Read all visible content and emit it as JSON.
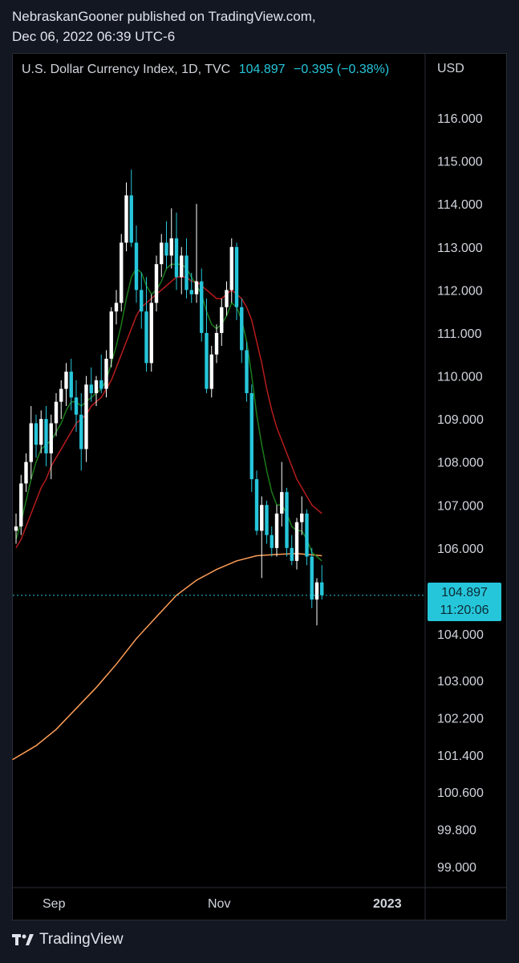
{
  "header": {
    "line1": "NebraskanGooner published on TradingView.com,",
    "line2": "Dec 06, 2022 06:39 UTC-6"
  },
  "legend": {
    "name": "U.S. Dollar Currency Index, 1D, TVC",
    "value": "104.897",
    "change": "−0.395 (−0.38%)"
  },
  "axis": {
    "currency": "USD",
    "x_labels": [
      "Sep",
      "Nov",
      "2023"
    ]
  },
  "last_price": {
    "value": "104.897",
    "countdown": "11:20:06"
  },
  "footer": {
    "brand": "TradingView"
  },
  "colors": {
    "up": "#ffffff",
    "down": "#26c6da",
    "ma_fast": "#1b7a1b",
    "ma_mid": "#b71c1c",
    "ma_slow": "#ff9e57",
    "accent": "#26c6da"
  },
  "chart_data": {
    "type": "candlestick",
    "y_ticks": [
      116.0,
      115.0,
      114.0,
      113.0,
      112.0,
      111.0,
      110.0,
      109.0,
      108.0,
      107.0,
      106.0,
      104.0,
      103.0,
      102.2,
      101.4,
      100.6,
      99.8,
      99.0
    ],
    "y_tick_labels": [
      "116.000",
      "115.000",
      "114.000",
      "113.000",
      "112.000",
      "111.000",
      "110.000",
      "109.000",
      "108.000",
      "107.000",
      "106.000",
      "104.000",
      "103.000",
      "102.200",
      "101.400",
      "100.600",
      "99.800",
      "99.000"
    ],
    "candles": [
      {
        "o": 106.4,
        "h": 106.8,
        "l": 106.1,
        "c": 106.5
      },
      {
        "o": 106.5,
        "h": 107.7,
        "l": 106.3,
        "c": 107.5
      },
      {
        "o": 107.5,
        "h": 108.2,
        "l": 107.3,
        "c": 108.0
      },
      {
        "o": 108.0,
        "h": 109.3,
        "l": 107.6,
        "c": 108.9
      },
      {
        "o": 108.9,
        "h": 109.1,
        "l": 108.1,
        "c": 108.4
      },
      {
        "o": 108.4,
        "h": 109.2,
        "l": 108.2,
        "c": 109.0
      },
      {
        "o": 109.0,
        "h": 109.3,
        "l": 107.9,
        "c": 108.2
      },
      {
        "o": 108.2,
        "h": 109.1,
        "l": 107.6,
        "c": 108.9
      },
      {
        "o": 108.9,
        "h": 109.6,
        "l": 108.6,
        "c": 109.4
      },
      {
        "o": 109.4,
        "h": 109.9,
        "l": 109.0,
        "c": 109.7
      },
      {
        "o": 109.7,
        "h": 110.3,
        "l": 109.3,
        "c": 110.1
      },
      {
        "o": 110.1,
        "h": 110.4,
        "l": 109.2,
        "c": 109.5
      },
      {
        "o": 109.5,
        "h": 109.9,
        "l": 108.7,
        "c": 109.1
      },
      {
        "o": 109.1,
        "h": 109.6,
        "l": 107.8,
        "c": 108.3
      },
      {
        "o": 108.3,
        "h": 110.0,
        "l": 108.0,
        "c": 109.8
      },
      {
        "o": 109.8,
        "h": 110.2,
        "l": 109.4,
        "c": 109.6
      },
      {
        "o": 109.6,
        "h": 110.0,
        "l": 109.3,
        "c": 109.9
      },
      {
        "o": 109.9,
        "h": 110.5,
        "l": 109.6,
        "c": 109.7
      },
      {
        "o": 109.7,
        "h": 110.6,
        "l": 109.5,
        "c": 110.4
      },
      {
        "o": 110.4,
        "h": 111.6,
        "l": 110.2,
        "c": 111.5
      },
      {
        "o": 111.5,
        "h": 112.0,
        "l": 111.2,
        "c": 111.7
      },
      {
        "o": 111.7,
        "h": 113.3,
        "l": 111.5,
        "c": 113.1
      },
      {
        "o": 113.1,
        "h": 114.5,
        "l": 112.9,
        "c": 114.2
      },
      {
        "o": 114.2,
        "h": 114.8,
        "l": 113.0,
        "c": 113.1
      },
      {
        "o": 113.1,
        "h": 113.5,
        "l": 111.7,
        "c": 112.0
      },
      {
        "o": 112.0,
        "h": 112.4,
        "l": 111.1,
        "c": 111.5
      },
      {
        "o": 111.5,
        "h": 112.3,
        "l": 110.1,
        "c": 110.3
      },
      {
        "o": 110.3,
        "h": 111.9,
        "l": 110.1,
        "c": 111.7
      },
      {
        "o": 111.7,
        "h": 112.8,
        "l": 111.5,
        "c": 112.6
      },
      {
        "o": 112.6,
        "h": 113.3,
        "l": 112.3,
        "c": 113.1
      },
      {
        "o": 113.1,
        "h": 113.6,
        "l": 112.5,
        "c": 112.8
      },
      {
        "o": 112.8,
        "h": 113.9,
        "l": 112.5,
        "c": 113.2
      },
      {
        "o": 113.2,
        "h": 113.8,
        "l": 112.0,
        "c": 112.3
      },
      {
        "o": 112.3,
        "h": 113.0,
        "l": 111.9,
        "c": 112.8
      },
      {
        "o": 112.8,
        "h": 113.2,
        "l": 111.8,
        "c": 112.0
      },
      {
        "o": 112.0,
        "h": 112.4,
        "l": 111.7,
        "c": 111.9
      },
      {
        "o": 111.9,
        "h": 114.0,
        "l": 111.7,
        "c": 112.2
      },
      {
        "o": 112.2,
        "h": 112.5,
        "l": 110.8,
        "c": 111.0
      },
      {
        "o": 111.0,
        "h": 111.8,
        "l": 109.6,
        "c": 109.7
      },
      {
        "o": 109.7,
        "h": 110.7,
        "l": 109.5,
        "c": 110.5
      },
      {
        "o": 110.5,
        "h": 111.2,
        "l": 110.3,
        "c": 111.0
      },
      {
        "o": 111.0,
        "h": 111.8,
        "l": 110.7,
        "c": 111.6
      },
      {
        "o": 111.6,
        "h": 112.2,
        "l": 111.4,
        "c": 112.0
      },
      {
        "o": 112.0,
        "h": 113.2,
        "l": 111.7,
        "c": 113.0
      },
      {
        "o": 113.0,
        "h": 113.1,
        "l": 111.3,
        "c": 111.6
      },
      {
        "o": 111.6,
        "h": 111.8,
        "l": 110.3,
        "c": 110.6
      },
      {
        "o": 110.6,
        "h": 110.8,
        "l": 109.4,
        "c": 109.6
      },
      {
        "o": 109.6,
        "h": 109.8,
        "l": 107.3,
        "c": 107.6
      },
      {
        "o": 107.6,
        "h": 107.8,
        "l": 106.3,
        "c": 106.4
      },
      {
        "o": 106.4,
        "h": 107.2,
        "l": 105.3,
        "c": 107.0
      },
      {
        "o": 107.0,
        "h": 107.1,
        "l": 106.1,
        "c": 106.3
      },
      {
        "o": 106.3,
        "h": 106.5,
        "l": 105.8,
        "c": 106.0
      },
      {
        "o": 106.0,
        "h": 107.0,
        "l": 105.8,
        "c": 106.8
      },
      {
        "o": 106.8,
        "h": 108.0,
        "l": 106.5,
        "c": 107.3
      },
      {
        "o": 107.3,
        "h": 107.4,
        "l": 105.8,
        "c": 106.0
      },
      {
        "o": 106.0,
        "h": 106.3,
        "l": 105.6,
        "c": 105.7
      },
      {
        "o": 105.7,
        "h": 106.7,
        "l": 105.5,
        "c": 106.6
      },
      {
        "o": 106.6,
        "h": 107.2,
        "l": 106.3,
        "c": 106.8
      },
      {
        "o": 106.8,
        "h": 106.9,
        "l": 105.6,
        "c": 105.8
      },
      {
        "o": 105.8,
        "h": 106.0,
        "l": 104.6,
        "c": 104.8
      },
      {
        "o": 104.8,
        "h": 105.3,
        "l": 104.2,
        "c": 105.2
      },
      {
        "o": 105.2,
        "h": 105.6,
        "l": 104.8,
        "c": 104.9
      }
    ],
    "ma_fast": [
      106.2,
      106.6,
      107.1,
      107.6,
      108.0,
      108.3,
      108.4,
      108.5,
      108.7,
      108.9,
      109.2,
      109.4,
      109.4,
      109.3,
      109.4,
      109.5,
      109.6,
      109.7,
      109.9,
      110.3,
      110.7,
      111.2,
      111.8,
      112.3,
      112.5,
      112.4,
      112.1,
      111.9,
      112.0,
      112.2,
      112.5,
      112.6,
      112.6,
      112.6,
      112.5,
      112.3,
      112.1,
      111.9,
      111.5,
      111.2,
      111.1,
      111.2,
      111.4,
      111.7,
      111.6,
      111.3,
      110.8,
      110.0,
      109.1,
      108.4,
      107.8,
      107.3,
      107.0,
      107.0,
      106.8,
      106.5,
      106.4,
      106.4,
      106.2,
      105.9,
      105.8,
      105.7
    ],
    "ma_mid": [
      106.0,
      106.2,
      106.5,
      106.8,
      107.1,
      107.4,
      107.6,
      107.9,
      108.1,
      108.3,
      108.5,
      108.7,
      108.9,
      109.0,
      109.1,
      109.3,
      109.4,
      109.5,
      109.7,
      109.9,
      110.2,
      110.5,
      110.8,
      111.1,
      111.4,
      111.6,
      111.7,
      111.8,
      111.9,
      112.0,
      112.1,
      112.2,
      112.3,
      112.3,
      112.3,
      112.2,
      112.2,
      112.1,
      112.0,
      111.9,
      111.8,
      111.8,
      111.9,
      112.0,
      111.9,
      111.8,
      111.6,
      111.3,
      110.8,
      110.3,
      109.7,
      109.2,
      108.8,
      108.5,
      108.2,
      107.9,
      107.6,
      107.4,
      107.2,
      107.0,
      106.9,
      106.8
    ],
    "ma_slow_x": [
      0,
      4,
      8,
      12,
      16,
      20,
      24,
      28,
      32,
      36,
      40,
      44,
      48,
      52,
      56,
      58,
      61
    ],
    "ma_slow": [
      101.3,
      101.6,
      101.95,
      102.4,
      102.85,
      103.35,
      103.9,
      104.4,
      104.9,
      105.25,
      105.5,
      105.7,
      105.82,
      105.85,
      105.87,
      105.85,
      105.82
    ]
  }
}
